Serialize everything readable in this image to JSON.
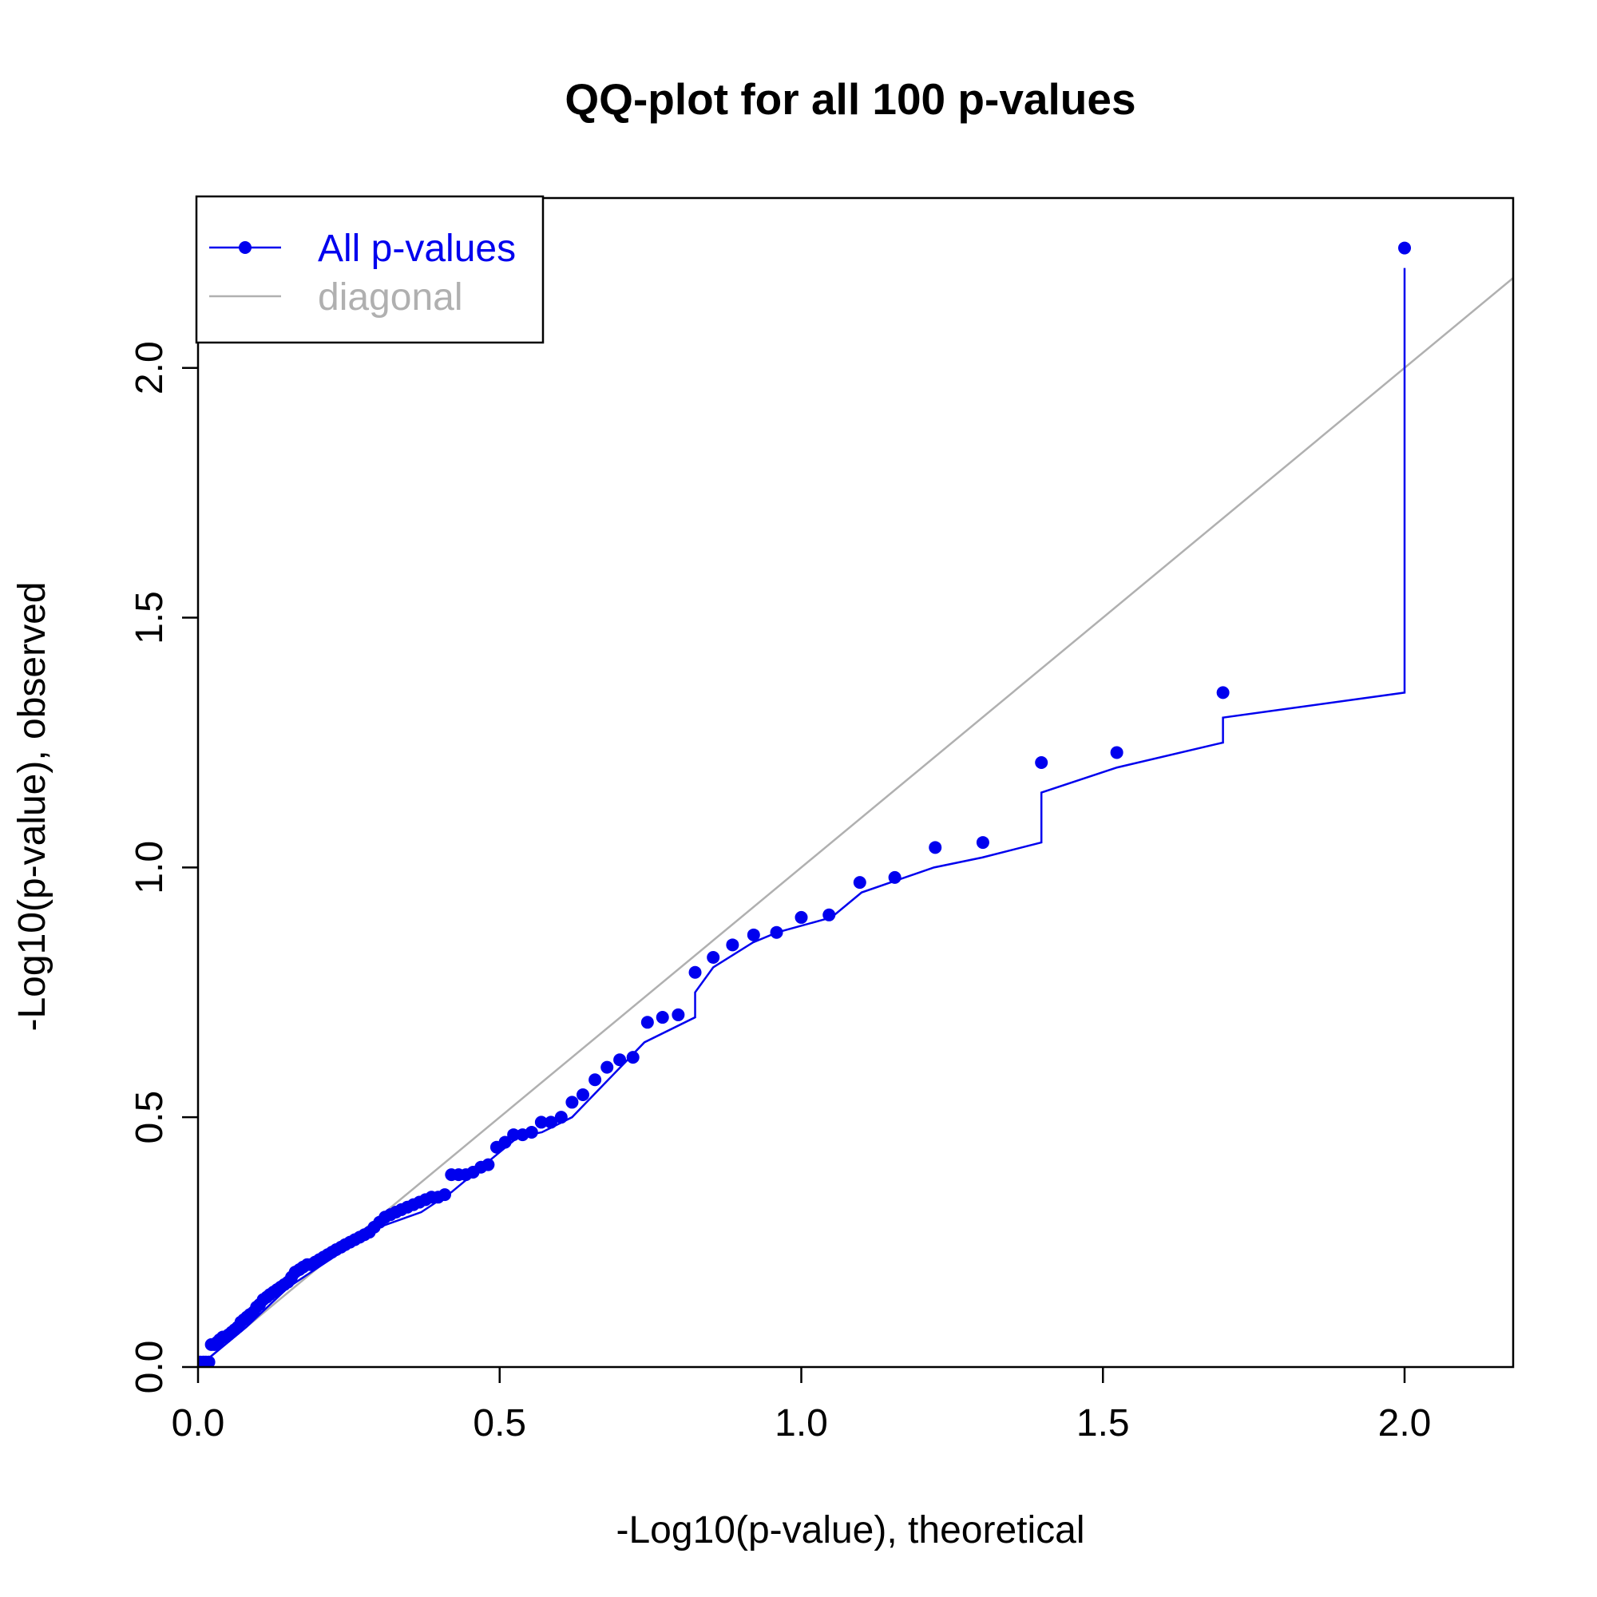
{
  "chart_data": {
    "type": "scatter",
    "title": "QQ-plot for all 100 p-values",
    "xlabel": "-Log10(p-value), theoretical",
    "ylabel": "-Log10(p-value), observed",
    "xlim": [
      0,
      2.18
    ],
    "ylim": [
      0,
      2.34
    ],
    "x_ticks": [
      0.0,
      0.5,
      1.0,
      1.5,
      2.0
    ],
    "x_tick_labels": [
      "0.0",
      "0.5",
      "1.0",
      "1.5",
      "2.0"
    ],
    "y_ticks": [
      0.0,
      0.5,
      1.0,
      1.5,
      2.0
    ],
    "y_tick_labels": [
      "0.0",
      "0.5",
      "1.0",
      "1.5",
      "2.0"
    ],
    "grid": false,
    "legend": {
      "placement": "top-left",
      "entries": [
        {
          "label": "All p-values",
          "color": "#0000ee",
          "style": "line-with-point"
        },
        {
          "label": "diagonal",
          "color": "#b0b0b0",
          "style": "line"
        }
      ]
    },
    "series": [
      {
        "name": "All p-values",
        "color": "#0000ee",
        "points": [
          [
            0.004,
            0.01
          ],
          [
            0.009,
            0.01
          ],
          [
            0.013,
            0.01
          ],
          [
            0.018,
            0.01
          ],
          [
            0.022,
            0.045
          ],
          [
            0.027,
            0.045
          ],
          [
            0.032,
            0.05
          ],
          [
            0.036,
            0.055
          ],
          [
            0.041,
            0.06
          ],
          [
            0.046,
            0.06
          ],
          [
            0.051,
            0.065
          ],
          [
            0.056,
            0.07
          ],
          [
            0.061,
            0.075
          ],
          [
            0.066,
            0.08
          ],
          [
            0.071,
            0.09
          ],
          [
            0.076,
            0.095
          ],
          [
            0.081,
            0.1
          ],
          [
            0.086,
            0.105
          ],
          [
            0.092,
            0.11
          ],
          [
            0.097,
            0.12
          ],
          [
            0.102,
            0.125
          ],
          [
            0.108,
            0.135
          ],
          [
            0.114,
            0.14
          ],
          [
            0.119,
            0.145
          ],
          [
            0.125,
            0.15
          ],
          [
            0.131,
            0.155
          ],
          [
            0.137,
            0.16
          ],
          [
            0.143,
            0.165
          ],
          [
            0.149,
            0.17
          ],
          [
            0.155,
            0.18
          ],
          [
            0.161,
            0.19
          ],
          [
            0.168,
            0.195
          ],
          [
            0.174,
            0.2
          ],
          [
            0.181,
            0.205
          ],
          [
            0.187,
            0.205
          ],
          [
            0.194,
            0.21
          ],
          [
            0.201,
            0.215
          ],
          [
            0.208,
            0.22
          ],
          [
            0.215,
            0.225
          ],
          [
            0.222,
            0.23
          ],
          [
            0.229,
            0.235
          ],
          [
            0.237,
            0.24
          ],
          [
            0.244,
            0.245
          ],
          [
            0.252,
            0.25
          ],
          [
            0.26,
            0.255
          ],
          [
            0.268,
            0.26
          ],
          [
            0.276,
            0.265
          ],
          [
            0.284,
            0.27
          ],
          [
            0.292,
            0.28
          ],
          [
            0.301,
            0.29
          ],
          [
            0.31,
            0.3
          ],
          [
            0.319,
            0.305
          ],
          [
            0.328,
            0.31
          ],
          [
            0.337,
            0.315
          ],
          [
            0.347,
            0.32
          ],
          [
            0.357,
            0.325
          ],
          [
            0.367,
            0.33
          ],
          [
            0.377,
            0.335
          ],
          [
            0.387,
            0.34
          ],
          [
            0.398,
            0.34
          ],
          [
            0.409,
            0.345
          ],
          [
            0.42,
            0.385
          ],
          [
            0.432,
            0.385
          ],
          [
            0.444,
            0.385
          ],
          [
            0.456,
            0.39
          ],
          [
            0.469,
            0.4
          ],
          [
            0.481,
            0.405
          ],
          [
            0.495,
            0.44
          ],
          [
            0.509,
            0.45
          ],
          [
            0.523,
            0.465
          ],
          [
            0.538,
            0.465
          ],
          [
            0.553,
            0.47
          ],
          [
            0.569,
            0.49
          ],
          [
            0.585,
            0.49
          ],
          [
            0.602,
            0.5
          ],
          [
            0.62,
            0.53
          ],
          [
            0.638,
            0.545
          ],
          [
            0.658,
            0.575
          ],
          [
            0.678,
            0.6
          ],
          [
            0.699,
            0.615
          ],
          [
            0.721,
            0.62
          ],
          [
            0.745,
            0.69
          ],
          [
            0.77,
            0.7
          ],
          [
            0.796,
            0.705
          ],
          [
            0.824,
            0.79
          ],
          [
            0.854,
            0.82
          ],
          [
            0.886,
            0.845
          ],
          [
            0.921,
            0.865
          ],
          [
            0.959,
            0.87
          ],
          [
            1.0,
            0.9
          ],
          [
            1.046,
            0.905
          ],
          [
            1.097,
            0.97
          ],
          [
            1.155,
            0.98
          ],
          [
            1.222,
            1.04
          ],
          [
            1.301,
            1.05
          ],
          [
            1.398,
            1.21
          ],
          [
            1.523,
            1.23
          ],
          [
            1.699,
            1.35
          ],
          [
            2.0,
            2.24
          ]
        ]
      },
      {
        "name": "",
        "type": "line",
        "color": "#0000ee",
        "points": [
          [
            0.0,
            0.0
          ],
          [
            0.03,
            0.03
          ],
          [
            0.08,
            0.08
          ],
          [
            0.15,
            0.16
          ],
          [
            0.2,
            0.2
          ],
          [
            0.3,
            0.28
          ],
          [
            0.37,
            0.31
          ],
          [
            0.42,
            0.35
          ],
          [
            0.5,
            0.43
          ],
          [
            0.53,
            0.46
          ],
          [
            0.57,
            0.47
          ],
          [
            0.62,
            0.5
          ],
          [
            0.7,
            0.6
          ],
          [
            0.74,
            0.65
          ],
          [
            0.824,
            0.7
          ],
          [
            0.824,
            0.75
          ],
          [
            0.854,
            0.8
          ],
          [
            0.92,
            0.85
          ],
          [
            0.96,
            0.87
          ],
          [
            1.05,
            0.9
          ],
          [
            1.1,
            0.95
          ],
          [
            1.22,
            1.0
          ],
          [
            1.3,
            1.02
          ],
          [
            1.398,
            1.05
          ],
          [
            1.398,
            1.15
          ],
          [
            1.523,
            1.2
          ],
          [
            1.699,
            1.25
          ],
          [
            1.699,
            1.3
          ],
          [
            2.0,
            1.35
          ],
          [
            2.0,
            2.2
          ]
        ]
      },
      {
        "name": "diagonal",
        "type": "line",
        "color": "#b0b0b0",
        "points": [
          [
            0,
            0
          ],
          [
            2.18,
            2.18
          ]
        ]
      }
    ]
  }
}
